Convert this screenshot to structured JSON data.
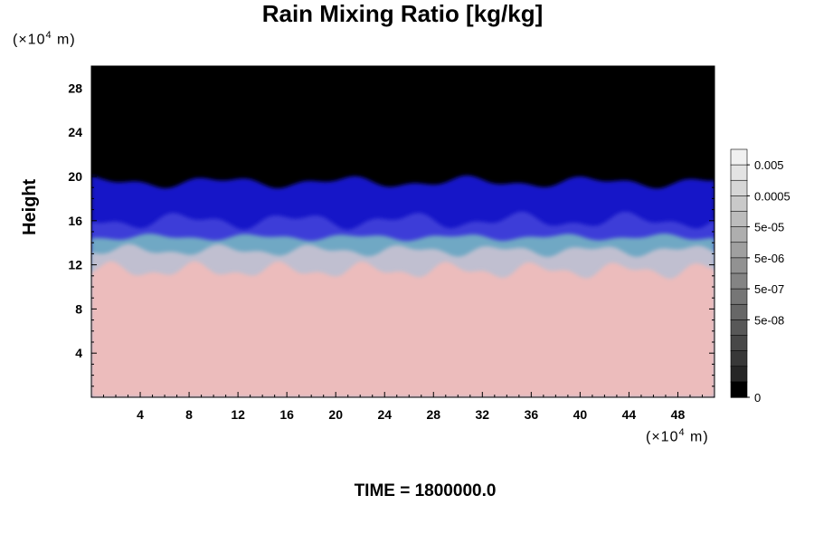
{
  "chart_data": {
    "type": "heatmap",
    "title": "Rain Mixing Ratio [kg/kg]",
    "ylabel": "Height",
    "xlabel": "",
    "x_unit": "(×10",
    "y_unit": "(×10",
    "unit_exponent": "4",
    "unit_suffix": " m)",
    "xlim": [
      0,
      51
    ],
    "ylim": [
      0,
      30
    ],
    "x_ticks": [
      4,
      8,
      12,
      16,
      20,
      24,
      28,
      32,
      36,
      40,
      44,
      48
    ],
    "y_ticks": [
      4,
      8,
      12,
      16,
      20,
      24,
      28
    ],
    "regions": [
      {
        "name": "upper",
        "y_range": [
          19.5,
          30
        ],
        "color": "#000000"
      },
      {
        "name": "dark-blue band",
        "y_range": [
          16,
          19.5
        ],
        "color": "#1212c8"
      },
      {
        "name": "blue band",
        "y_range": [
          14.5,
          16
        ],
        "color": "#3d3dd8"
      },
      {
        "name": "cyan band",
        "y_range": [
          13.3,
          14.5
        ],
        "color": "#6fa8c4"
      },
      {
        "name": "grey band",
        "y_range": [
          11.5,
          13.3
        ],
        "color": "#c0bfd0"
      },
      {
        "name": "lower",
        "y_range": [
          0,
          11.5
        ],
        "color": "#ecbcbc"
      }
    ],
    "colorbar": {
      "labels": [
        "0.005",
        "0.0005",
        "5e-05",
        "5e-06",
        "5e-07",
        "5e-08",
        "0"
      ],
      "levels": 16,
      "colors": [
        "#f0f0f0",
        "#e3e3e3",
        "#d6d6d6",
        "#c9c9c9",
        "#bcbcbc",
        "#aeaeae",
        "#a0a0a0",
        "#929292",
        "#848484",
        "#767676",
        "#676767",
        "#585858",
        "#484848",
        "#383838",
        "#262626",
        "#000000"
      ]
    }
  },
  "footer": {
    "time_label": "TIME =",
    "time_value": "1800000.0"
  }
}
